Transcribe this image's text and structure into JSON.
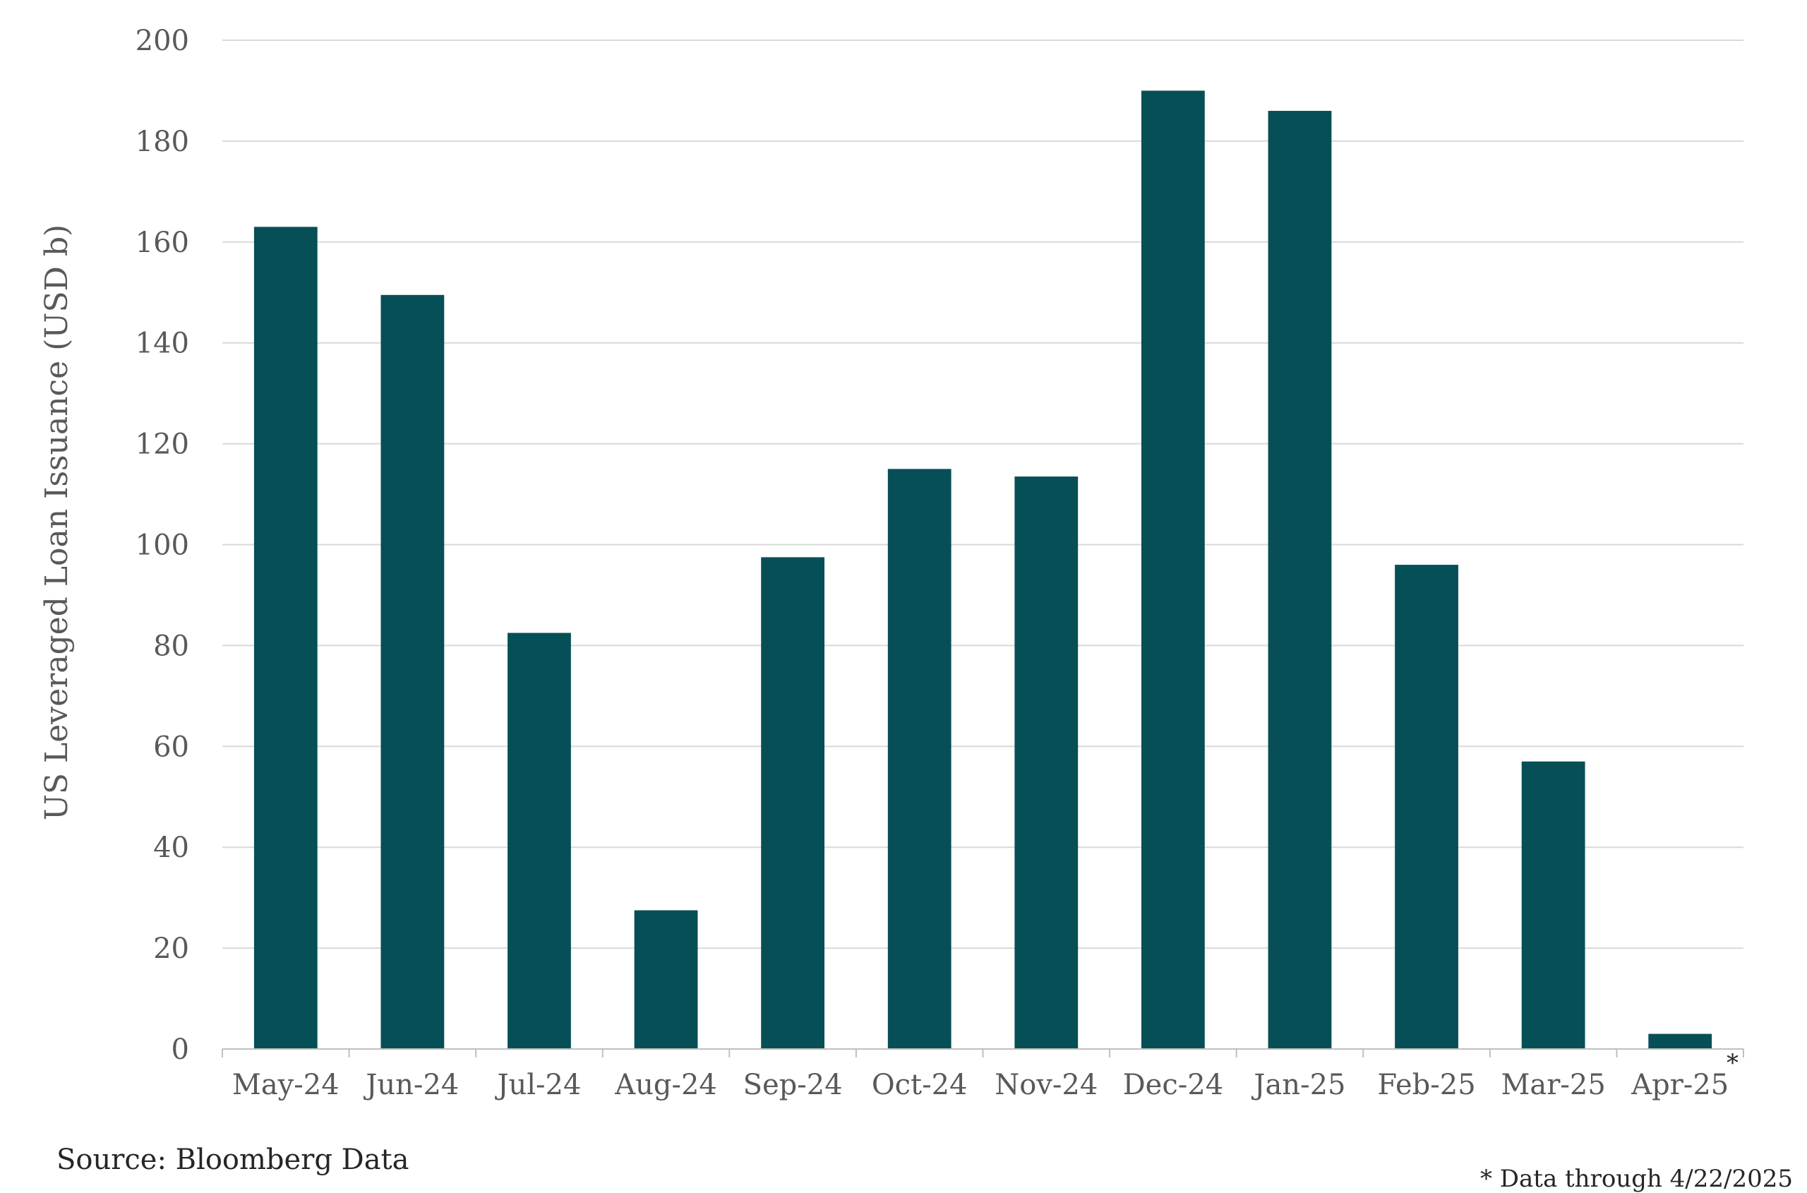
{
  "chart_data": {
    "type": "bar",
    "categories": [
      "May-24",
      "Jun-24",
      "Jul-24",
      "Aug-24",
      "Sep-24",
      "Oct-24",
      "Nov-24",
      "Dec-24",
      "Jan-25",
      "Feb-25",
      "Mar-25",
      "Apr-25"
    ],
    "values": [
      163,
      149.5,
      82.5,
      27.5,
      97.5,
      115,
      113.5,
      190,
      186,
      96,
      57,
      3
    ],
    "xlabel": "",
    "ylabel": "US Leveraged Loan Issuance (USD b)",
    "ylim": [
      0,
      200
    ],
    "yticks": [
      0,
      20,
      40,
      60,
      80,
      100,
      120,
      140,
      160,
      180,
      200
    ],
    "grid": true,
    "legend": "none",
    "bar_color": "#074F57",
    "annotation": "*"
  },
  "source_text": "Source: Bloomberg Data",
  "footnote_text": "* Data through 4/22/2025",
  "colors": {
    "grid": "#D9D9D9",
    "axis": "#BFBFBF",
    "text": "#595959"
  }
}
